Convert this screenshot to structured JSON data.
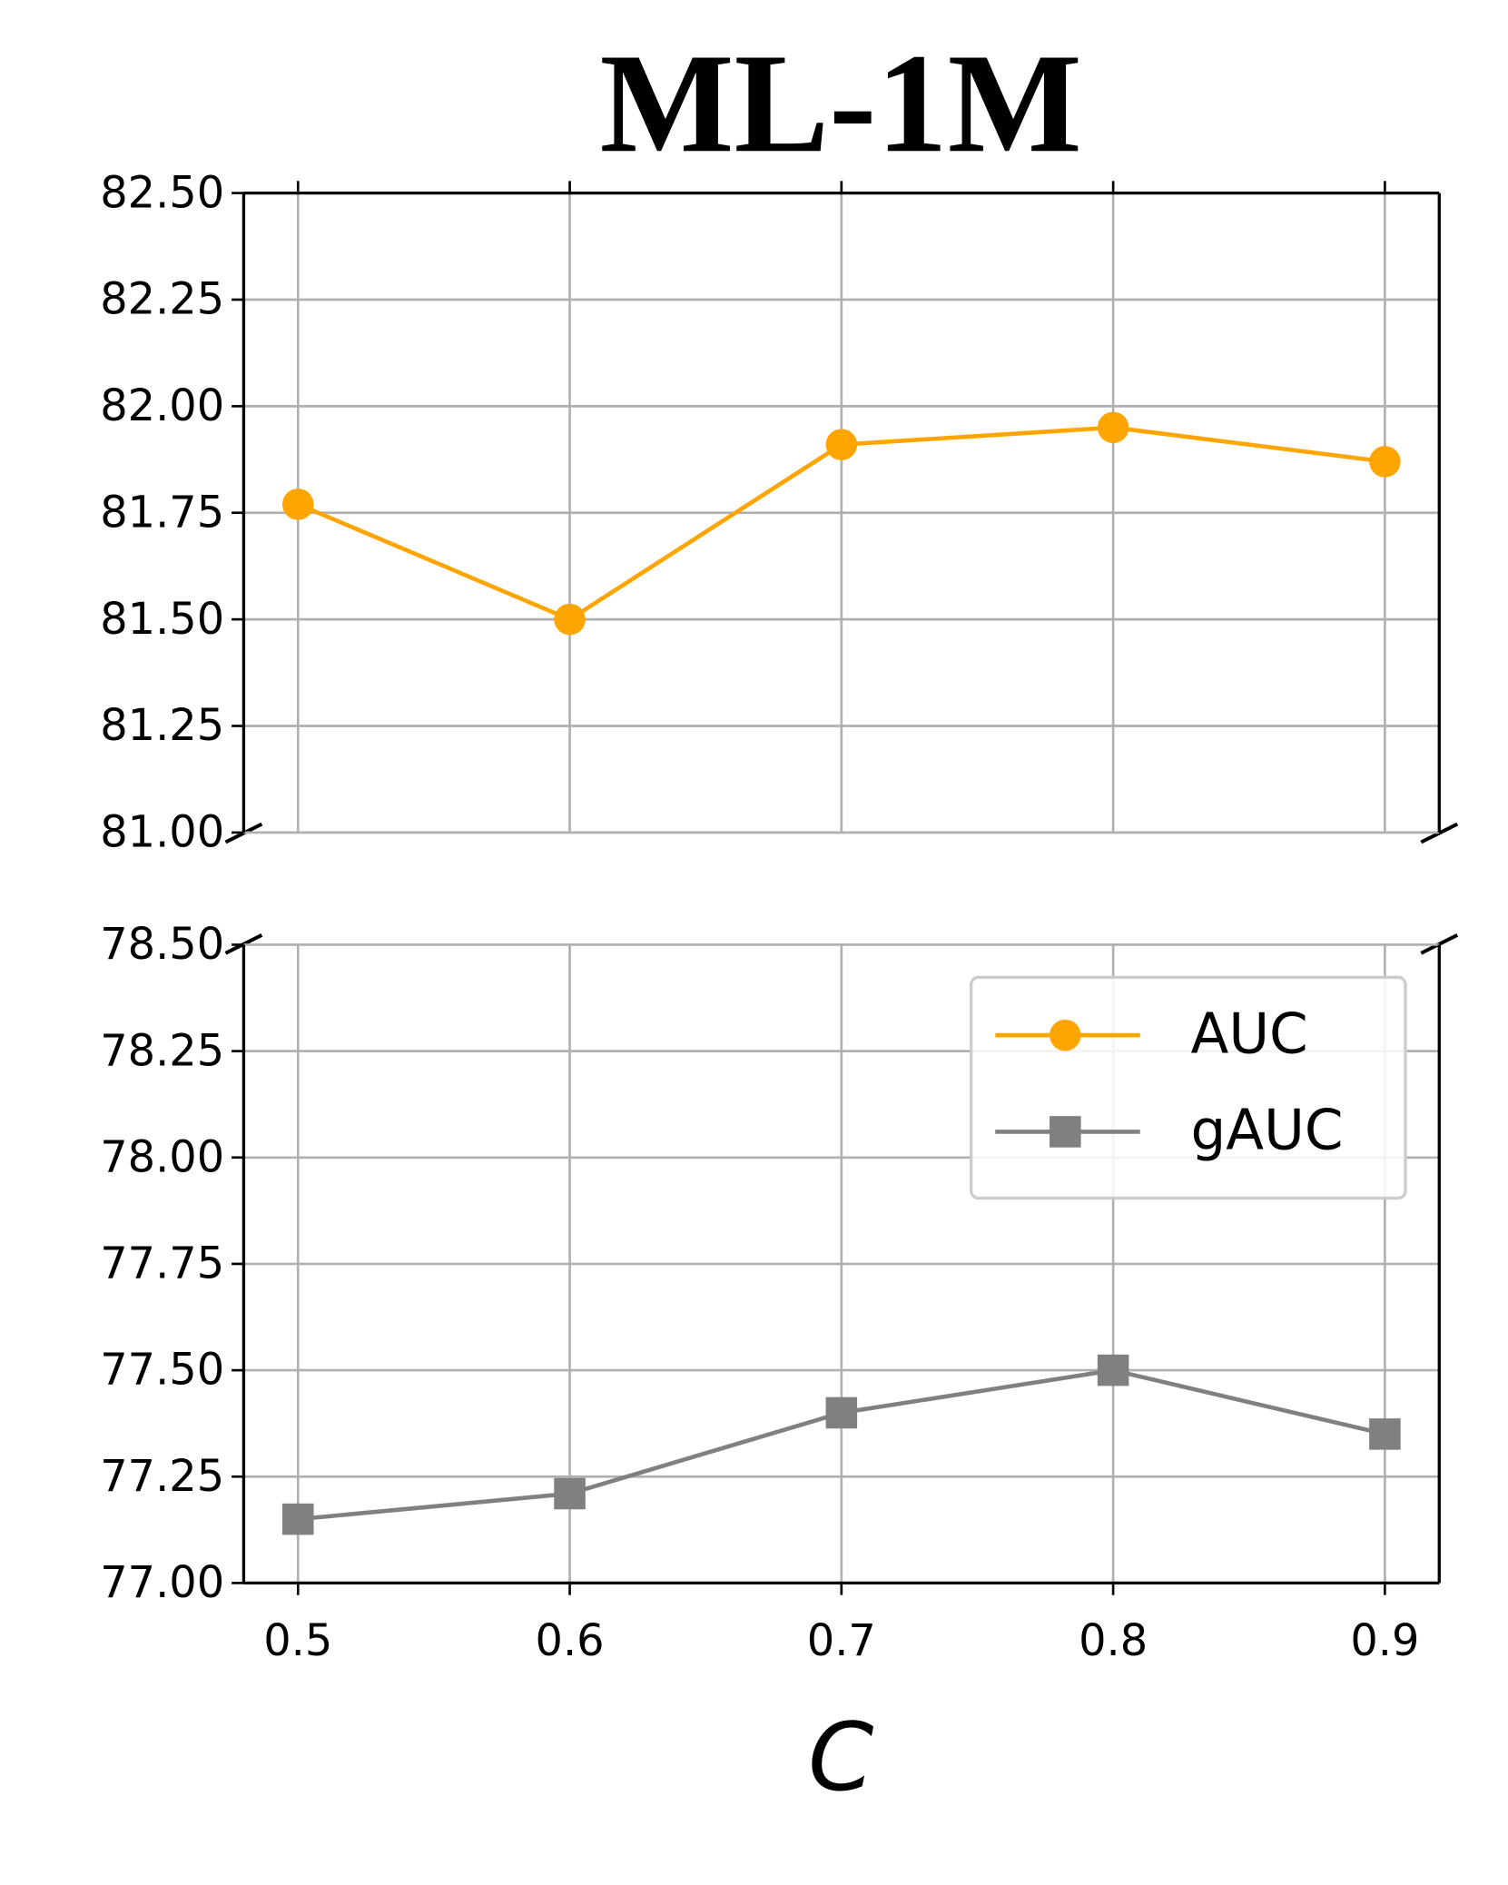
{
  "chart_data": {
    "type": "line",
    "title": "ML-1M",
    "xlabel": "C",
    "x": [
      0.5,
      0.6,
      0.7,
      0.8,
      0.9
    ],
    "xlim": [
      0.48,
      0.92
    ],
    "xticks": [
      0.5,
      0.6,
      0.7,
      0.8,
      0.9
    ],
    "ylim": [
      81,
      82.5
    ],
    "yticks": [
      {
        "value": 81,
        "label": "81.00"
      },
      {
        "value": 81.25,
        "label": "81.25"
      },
      {
        "value": 81.5,
        "label": "81.50"
      },
      {
        "value": 81.75,
        "label": "81.75"
      },
      {
        "value": 82,
        "label": "82.00"
      },
      {
        "value": 82.25,
        "label": "82.25"
      },
      {
        "value": 82.5,
        "label": "82.50"
      }
    ],
    "y2lim": [
      77,
      78.5
    ],
    "y2ticks": [
      {
        "value": 77,
        "label": "77.00"
      },
      {
        "value": 77.25,
        "label": "77.25"
      },
      {
        "value": 77.5,
        "label": "77.50"
      },
      {
        "value": 77.75,
        "label": "77.75"
      },
      {
        "value": 78,
        "label": "78.00"
      },
      {
        "value": 78.25,
        "label": "78.25"
      },
      {
        "value": 78.5,
        "label": "78.50"
      }
    ],
    "grid": true,
    "legend": "upper right",
    "series": [
      {
        "name": "AUC",
        "color": "#ffa500",
        "marker": "circle",
        "values": [
          81.77,
          81.5,
          81.91,
          81.95,
          81.87
        ]
      },
      {
        "name": "gAUC",
        "color": "#808080",
        "marker": "square",
        "axis": "y2",
        "values": [
          77.15,
          77.21,
          77.4,
          77.5,
          77.35
        ]
      }
    ]
  }
}
